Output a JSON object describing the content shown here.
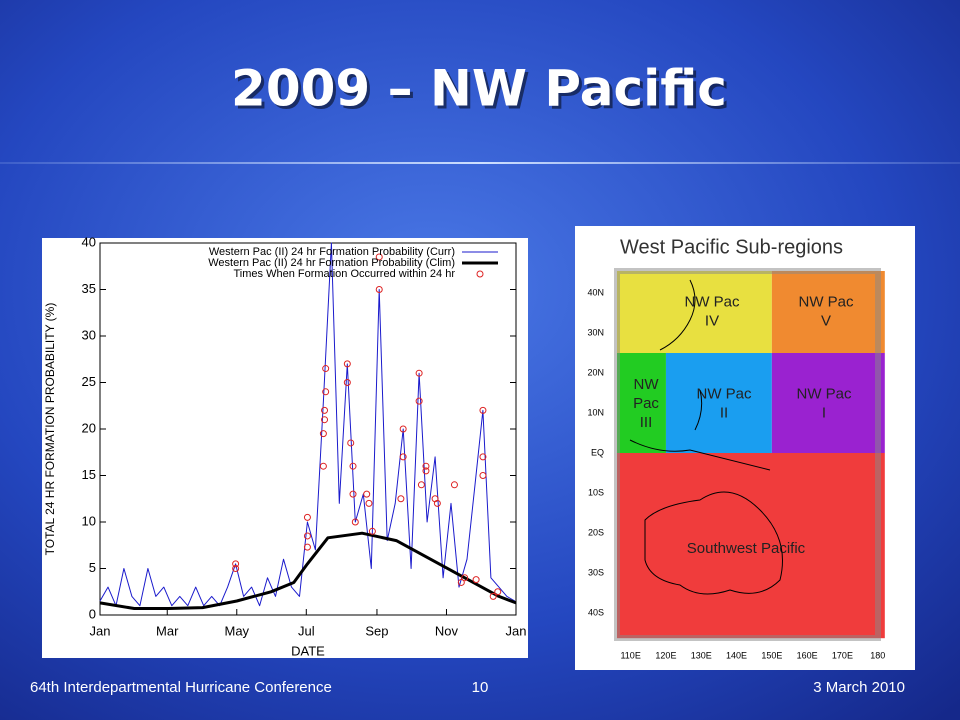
{
  "slide": {
    "title": "2009 – NW Pacific",
    "footer_left": "64th Interdepartmental Hurricane Conference",
    "page_number": "10",
    "date": "3 March 2010"
  },
  "chart_data": {
    "type": "line",
    "xlabel": "DATE",
    "ylabel": "TOTAL 24 HR FORMATION PROBABILITY (%)",
    "xlim": [
      0,
      365
    ],
    "xticks": [
      {
        "value": 0,
        "label": "Jan"
      },
      {
        "value": 59,
        "label": "Mar"
      },
      {
        "value": 120,
        "label": "May"
      },
      {
        "value": 181,
        "label": "Jul"
      },
      {
        "value": 243,
        "label": "Sep"
      },
      {
        "value": 304,
        "label": "Nov"
      },
      {
        "value": 365,
        "label": "Jan"
      }
    ],
    "ylim": [
      0,
      40
    ],
    "yticks": [
      0,
      5,
      10,
      15,
      20,
      25,
      30,
      35,
      40
    ],
    "grid": false,
    "legend": "upper right",
    "series": [
      {
        "name": "Western Pac (II) 24 hr Formation Probability (Curr)",
        "color": "#1a1acc",
        "style": "line",
        "x": [
          0,
          7,
          14,
          21,
          28,
          35,
          42,
          49,
          56,
          63,
          70,
          77,
          84,
          91,
          98,
          105,
          112,
          119,
          126,
          133,
          140,
          147,
          154,
          161,
          168,
          175,
          182,
          189,
          196,
          203,
          210,
          217,
          224,
          231,
          238,
          245,
          252,
          259,
          266,
          273,
          280,
          287,
          294,
          301,
          308,
          315,
          322,
          329,
          336,
          343,
          350,
          357,
          364
        ],
        "values": [
          1.5,
          3,
          1,
          5,
          2,
          1,
          5,
          2,
          3,
          1,
          2,
          1,
          3,
          1,
          2,
          1,
          3,
          5.5,
          2,
          3,
          1,
          4,
          2,
          6,
          3,
          2,
          10,
          7,
          23,
          40,
          12,
          27,
          10,
          13,
          5,
          35,
          8,
          12,
          20,
          5,
          26,
          10,
          17,
          4,
          12,
          3,
          6,
          14,
          22,
          4,
          3,
          2,
          1.5
        ]
      },
      {
        "name": "Western Pac (II) 24 hr Formation Probability (Clim)",
        "color": "#000000",
        "style": "thick",
        "x": [
          0,
          30,
          60,
          90,
          120,
          150,
          170,
          182,
          200,
          230,
          260,
          290,
          320,
          350,
          365
        ],
        "values": [
          1.3,
          0.7,
          0.7,
          0.8,
          1.5,
          2.5,
          3.5,
          5.5,
          8.3,
          8.8,
          8,
          6,
          4,
          2,
          1.3
        ]
      },
      {
        "name": "Times When Formation Occurred within 24 hr",
        "color": "#dd2222",
        "style": "markers",
        "x": [
          119,
          119,
          182,
          182,
          182,
          196,
          196,
          197,
          197,
          198,
          198,
          217,
          217,
          220,
          222,
          222,
          224,
          234,
          236,
          239,
          245,
          245,
          264,
          266,
          266,
          280,
          280,
          282,
          286,
          286,
          294,
          296,
          311,
          317,
          320,
          330,
          336,
          336,
          336,
          345,
          349
        ],
        "values": [
          5.5,
          5,
          10.5,
          8.5,
          7.3,
          16,
          19.5,
          21,
          22,
          24,
          26.5,
          27,
          25,
          18.5,
          16,
          13,
          10,
          13,
          12,
          9,
          35,
          38.5,
          12.5,
          17,
          20,
          26,
          23,
          14,
          16,
          15.5,
          12.5,
          12,
          14,
          3.5,
          4,
          3.8,
          22,
          17,
          15,
          2,
          2.5
        ]
      }
    ]
  },
  "map": {
    "title": "West Pacific Sub-regions",
    "lat_labels": [
      "40N",
      "30N",
      "20N",
      "10N",
      "EQ",
      "10S",
      "20S",
      "30S",
      "40S"
    ],
    "lon_labels": [
      "110E",
      "120E",
      "130E",
      "140E",
      "150E",
      "160E",
      "170E",
      "180"
    ],
    "regions": [
      {
        "lines": [
          "NW Pac",
          "IV"
        ],
        "color": "#e8e040"
      },
      {
        "lines": [
          "NW Pac",
          "V"
        ],
        "color": "#f08a30"
      },
      {
        "lines": [
          "NW",
          "Pac",
          "III"
        ],
        "color": "#22cc22"
      },
      {
        "lines": [
          "NW Pac",
          "II"
        ],
        "color": "#1a9ef0"
      },
      {
        "lines": [
          "NW Pac",
          "I"
        ],
        "color": "#9a22d0"
      },
      {
        "lines": [
          "Southwest Pacific"
        ],
        "color": "#f03c3c"
      }
    ]
  }
}
